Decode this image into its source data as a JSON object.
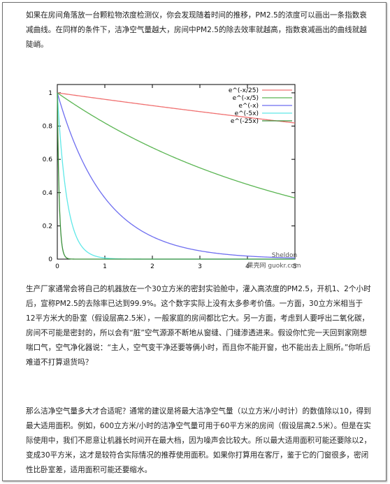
{
  "article": {
    "paragraph1": "如果在房间角落放一台颗粒物浓度检测仪，你会发现随着时间的推移，PM2.5的浓度可以画出一条指数衰减曲线。在同样的条件下，洁净空气量越大，房间中PM2.5的除去效率就越高，指数衰减画出的曲线就越陡峭。",
    "paragraph2": "生产厂家通常会将自己的机器放在一个30立方米的密封实验舱中，灌入高浓度的PM2.5，开机1、2个小时后，宣称PM2.5的去除率已达到99.9%。这个数字实际上没有太多参考价值。一方面，30立方米相当于12平方米大的卧室（假设层高2.5米），一般家庭的房间都比它大。另一方面，考虑到人要呼出二氧化碳，房间不可能是密封的，所以会有“脏”空气源源不断地从窗缝、门缝渗透进来。假设你忙完一天回到家刚想喘口气，空气净化器说：“主人，空气变干净还要等俩小时，而且你不能开窗，也不能出去上厕所。”你听后难道不打算退货吗？",
    "paragraph3": "那么洁净空气量多大才合适呢？通常的建议是将最大洁净空气量（以立方米/小时计）的数值除以10，得到最大适用面积。例如，600立方米/小时的洁净空气量可用于60平方米的房间（假设层高2.5米）。但是在实际使用中，我们不愿意让机器长时间开在最大档，因为噪声会比较大。所以最大适用面积可能还要除以2，变成30平方米，这才是较符合实际情况的推荐使用面积。如果你打算用在客厅，鉴于它的门窗很多，密闭性比卧室差，适用面积可能还要缩水。"
  },
  "chart_data": {
    "type": "line",
    "title": "",
    "xlabel": "",
    "ylabel": "",
    "xlim": [
      0,
      5
    ],
    "ylim": [
      0,
      1.05
    ],
    "grid": false,
    "legend_position": "top-right",
    "x_ticks": [
      "0",
      "1",
      "2",
      "3",
      "4",
      "5"
    ],
    "y_ticks": [
      "0",
      "0.2",
      "0.4",
      "0.6",
      "0.8",
      "1"
    ],
    "series": [
      {
        "name": "e^(-x/25)",
        "color": "#f07070",
        "k": 0.04,
        "x": [
          0,
          1,
          2,
          3,
          4,
          5
        ],
        "y": [
          1,
          0.961,
          0.923,
          0.887,
          0.852,
          0.819
        ]
      },
      {
        "name": "e^(-x/5)",
        "color": "#5ab552",
        "k": 0.2,
        "x": [
          0,
          1,
          2,
          3,
          4,
          5
        ],
        "y": [
          1,
          0.819,
          0.67,
          0.549,
          0.449,
          0.368
        ]
      },
      {
        "name": "e^(-x)",
        "color": "#6e6ef0",
        "k": 1,
        "x": [
          0,
          1,
          2,
          3,
          4,
          5
        ],
        "y": [
          1,
          0.368,
          0.135,
          0.05,
          0.018,
          0.007
        ]
      },
      {
        "name": "e^(-5x)",
        "color": "#5fe8e8",
        "k": 5,
        "x": [
          0,
          0.2,
          0.4,
          0.6,
          1,
          2
        ],
        "y": [
          1,
          0.368,
          0.135,
          0.05,
          0.007,
          0
        ]
      },
      {
        "name": "e^(-25x)",
        "color": "#3a8f3a",
        "k": 25,
        "x": [
          0,
          0.04,
          0.08,
          0.12,
          0.2,
          0.4
        ],
        "y": [
          1,
          0.368,
          0.135,
          0.05,
          0.007,
          0
        ]
      }
    ],
    "watermark_lines": [
      "Sheldon",
      "果壳网 guokr.com"
    ]
  }
}
